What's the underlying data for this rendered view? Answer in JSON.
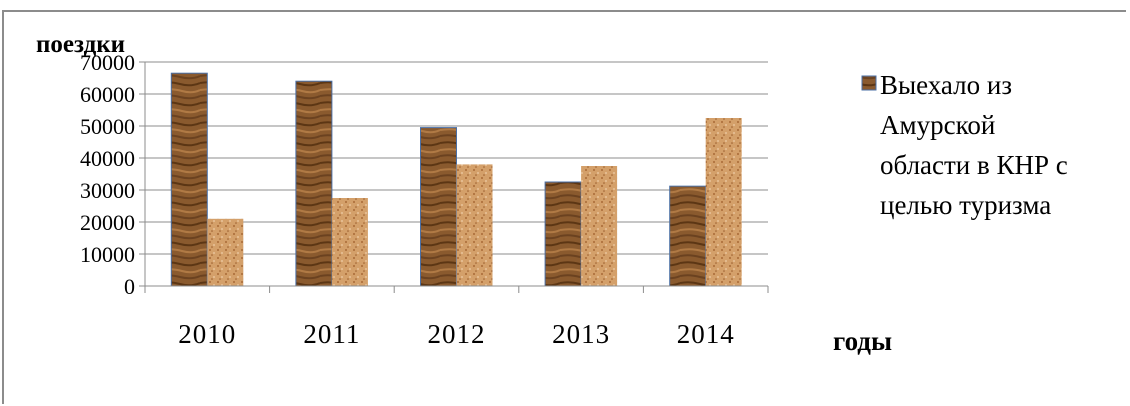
{
  "chart_data": {
    "type": "bar",
    "categories": [
      "2010",
      "2011",
      "2012",
      "2013",
      "2014"
    ],
    "series": [
      {
        "name": "Выехало из Амурской области в КНР с целью туризма",
        "legend_lines": [
          "Выехало из",
          "Амурской",
          "области в КНР с",
          "целью туризма"
        ],
        "values": [
          66500,
          64000,
          49500,
          32500,
          31200
        ],
        "color": "#8a5a2e"
      },
      {
        "values": [
          21000,
          27500,
          38000,
          37500,
          52500
        ],
        "color": "#d4a06a"
      }
    ],
    "ylabel": "поездки",
    "xlabel": "годы",
    "ylim": [
      0,
      70000
    ],
    "yticks": [
      "70000",
      "60000",
      "50000",
      "40000",
      "30000",
      "20000",
      "10000",
      "0"
    ],
    "grid": true,
    "legend": "right"
  }
}
